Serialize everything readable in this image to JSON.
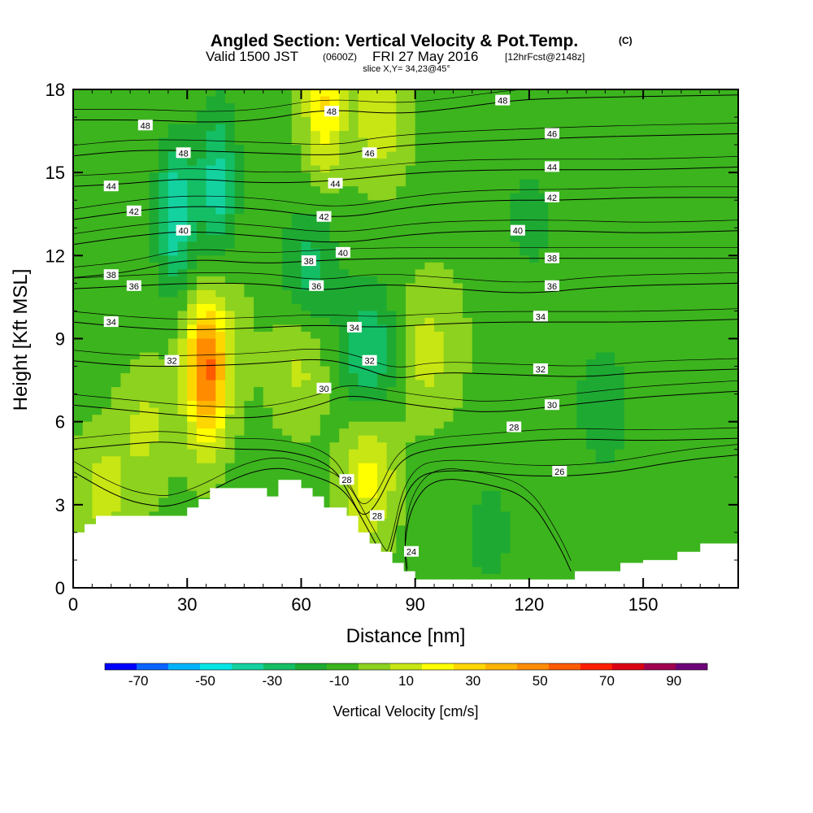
{
  "title": {
    "main": "Angled Section: Vertical Velocity & Pot.Temp.",
    "units": "(C)",
    "valid_prefix": "Valid 1500 JST",
    "valid_z": "(0600Z)",
    "valid_date": "FRI 27 May 2016",
    "valid_fcst": "[12hrFcst@2148z]",
    "slice": "slice X,Y= 34,23@45°"
  },
  "colors": {
    "levels": [
      "#0000ff",
      "#0a64ff",
      "#00b4ff",
      "#00e6e6",
      "#14d2a0",
      "#14be64",
      "#1eaa32",
      "#3cb41e",
      "#8cd21e",
      "#c8e614",
      "#ffff00",
      "#ffd700",
      "#ffb400",
      "#ff8c00",
      "#ff5a00",
      "#ff1e00",
      "#dc0014",
      "#a00050",
      "#6e0078"
    ],
    "terrain": "#ffffff"
  },
  "chart_data": {
    "type": "heatmap",
    "xlabel": "Distance [nm]",
    "ylabel": "Height [Kft MSL]",
    "xlim": [
      0,
      175
    ],
    "ylim": [
      0,
      18
    ],
    "xticks": [
      "0",
      "30",
      "60",
      "90",
      "120",
      "150"
    ],
    "yticks": [
      "0",
      "3",
      "6",
      "9",
      "12",
      "15",
      "18"
    ],
    "colorbar": {
      "label": "Vertical Velocity [cm/s]",
      "ticks": [
        "-70",
        "-50",
        "-30",
        "-10",
        "10",
        "30",
        "50",
        "70",
        "90"
      ],
      "bounds": [
        -80,
        100
      ]
    },
    "features": [
      {
        "x": 35,
        "y": 7.5,
        "w": 45
      },
      {
        "x": 36,
        "y": 8.5,
        "w": 20
      },
      {
        "x": 19,
        "y": 6,
        "w": 15
      },
      {
        "x": 78,
        "y": 4,
        "w": 25
      },
      {
        "x": 93,
        "y": 8.5,
        "w": 15
      },
      {
        "x": 60,
        "y": 8,
        "w": 15
      },
      {
        "x": 8,
        "y": 3.5,
        "w": 15
      },
      {
        "x": 66,
        "y": 17.5,
        "w": 30
      },
      {
        "x": 81,
        "y": 17,
        "w": 20
      },
      {
        "x": 27,
        "y": 13.5,
        "w": -35
      },
      {
        "x": 38,
        "y": 14.5,
        "w": -30
      },
      {
        "x": 78,
        "y": 8.5,
        "w": -25
      },
      {
        "x": 62,
        "y": 11.5,
        "w": -20
      },
      {
        "x": 140,
        "y": 6.5,
        "w": -15
      },
      {
        "x": 120,
        "y": 13.5,
        "w": -10
      },
      {
        "x": 110,
        "y": 2,
        "w": -10
      }
    ],
    "terrain_profile": {
      "x": [
        0,
        3,
        6,
        9,
        12,
        15,
        18,
        21,
        24,
        27,
        30,
        33,
        36,
        39,
        42,
        45,
        48,
        51,
        54,
        57,
        60,
        63,
        66,
        69,
        72,
        75,
        78,
        81,
        84,
        87,
        90,
        93,
        96,
        99,
        102,
        105,
        108,
        111,
        114,
        117,
        120,
        123,
        126,
        129,
        132,
        135,
        138,
        141,
        144,
        147,
        150,
        153,
        156,
        159,
        162,
        165,
        168,
        171,
        175
      ],
      "height": [
        2.0,
        2.3,
        2.6,
        2.6,
        2.6,
        2.6,
        2.6,
        2.6,
        2.6,
        2.6,
        2.9,
        3.2,
        3.6,
        3.6,
        3.6,
        3.6,
        3.6,
        3.3,
        3.9,
        3.9,
        3.6,
        3.3,
        2.9,
        2.9,
        2.6,
        2.0,
        1.6,
        1.3,
        0.9,
        0.6,
        0.3,
        0.3,
        0.3,
        0.3,
        0.3,
        0.3,
        0.3,
        0.3,
        0.3,
        0.3,
        0.3,
        0.3,
        0.3,
        0.3,
        0.6,
        0.6,
        0.6,
        0.6,
        0.9,
        0.9,
        1.0,
        1.0,
        1.0,
        1.3,
        1.3,
        1.6,
        1.6,
        1.6,
        1.6
      ]
    },
    "theta_contours": [
      {
        "level": 24,
        "label": "24",
        "points": [
          [
            88,
            0.3
          ],
          [
            87,
            1.5
          ],
          [
            89,
            3
          ],
          [
            95,
            4
          ],
          [
            108,
            3.8
          ],
          [
            120,
            3.3
          ],
          [
            128,
            1.5
          ],
          [
            131,
            0.6
          ]
        ]
      },
      {
        "level": 26,
        "label": "26",
        "points": [
          [
            0,
            4.2
          ],
          [
            10,
            3.4
          ],
          [
            18,
            3.0
          ],
          [
            28,
            2.9
          ],
          [
            50,
            4.5
          ],
          [
            65,
            4.0
          ],
          [
            72,
            3.5
          ],
          [
            78,
            2.0
          ],
          [
            82,
            1.0
          ],
          [
            83,
            0.9
          ],
          [
            88,
            4.0
          ],
          [
            100,
            4.3
          ],
          [
            120,
            4.0
          ],
          [
            140,
            4.1
          ],
          [
            160,
            4.6
          ],
          [
            175,
            4.8
          ]
        ]
      },
      {
        "level": 28,
        "label": "28",
        "points": [
          [
            0,
            5.0
          ],
          [
            15,
            5.2
          ],
          [
            25,
            5.3
          ],
          [
            40,
            5.0
          ],
          [
            55,
            5.0
          ],
          [
            68,
            4.5
          ],
          [
            73,
            3.3
          ],
          [
            76,
            2.5
          ],
          [
            80,
            3.0
          ],
          [
            85,
            4.5
          ],
          [
            92,
            5.0
          ],
          [
            110,
            5.2
          ],
          [
            130,
            5.4
          ],
          [
            150,
            5.3
          ],
          [
            175,
            5.4
          ]
        ]
      },
      {
        "level": 30,
        "label": "30",
        "points": [
          [
            0,
            6.6
          ],
          [
            15,
            6.4
          ],
          [
            30,
            6.2
          ],
          [
            50,
            6.1
          ],
          [
            65,
            6.6
          ],
          [
            72,
            7.0
          ],
          [
            85,
            6.7
          ],
          [
            95,
            6.5
          ],
          [
            110,
            6.3
          ],
          [
            130,
            6.6
          ],
          [
            150,
            6.9
          ],
          [
            175,
            7.1
          ]
        ]
      },
      {
        "level": 32,
        "label": "32",
        "points": [
          [
            0,
            8.2
          ],
          [
            15,
            8.0
          ],
          [
            30,
            8.0
          ],
          [
            50,
            8.1
          ],
          [
            65,
            8.3
          ],
          [
            75,
            8.0
          ],
          [
            85,
            7.5
          ],
          [
            95,
            7.8
          ],
          [
            115,
            7.7
          ],
          [
            135,
            7.6
          ],
          [
            150,
            7.8
          ],
          [
            175,
            7.9
          ]
        ]
      },
      {
        "level": 34,
        "label": "34",
        "points": [
          [
            0,
            9.6
          ],
          [
            15,
            9.4
          ],
          [
            30,
            9.3
          ],
          [
            50,
            9.4
          ],
          [
            65,
            9.5
          ],
          [
            80,
            9.4
          ],
          [
            92,
            9.5
          ],
          [
            110,
            9.6
          ],
          [
            130,
            9.6
          ],
          [
            150,
            9.6
          ],
          [
            175,
            9.7
          ]
        ]
      },
      {
        "level": 36,
        "label": "36",
        "points": [
          [
            0,
            10.8
          ],
          [
            15,
            10.9
          ],
          [
            30,
            11.0
          ],
          [
            50,
            11.0
          ],
          [
            65,
            10.7
          ],
          [
            80,
            11.0
          ],
          [
            100,
            10.8
          ],
          [
            120,
            10.6
          ],
          [
            140,
            10.9
          ],
          [
            175,
            11.0
          ]
        ]
      },
      {
        "level": 38,
        "label": "38",
        "points": [
          [
            0,
            11.2
          ],
          [
            15,
            11.4
          ],
          [
            30,
            11.9
          ],
          [
            50,
            11.7
          ],
          [
            62,
            11.8
          ],
          [
            80,
            11.9
          ],
          [
            100,
            11.9
          ],
          [
            125,
            11.9
          ],
          [
            150,
            11.9
          ],
          [
            175,
            11.9
          ]
        ]
      },
      {
        "level": 40,
        "label": "40",
        "points": [
          [
            0,
            12.4
          ],
          [
            15,
            12.7
          ],
          [
            30,
            12.9
          ],
          [
            50,
            12.7
          ],
          [
            70,
            12.4
          ],
          [
            90,
            12.8
          ],
          [
            110,
            12.9
          ],
          [
            130,
            12.9
          ],
          [
            150,
            12.8
          ],
          [
            175,
            12.9
          ]
        ]
      },
      {
        "level": 42,
        "label": "42",
        "points": [
          [
            0,
            13.3
          ],
          [
            15,
            13.6
          ],
          [
            30,
            13.8
          ],
          [
            50,
            13.7
          ],
          [
            70,
            13.3
          ],
          [
            90,
            13.8
          ],
          [
            110,
            14.0
          ],
          [
            130,
            14.0
          ],
          [
            150,
            14.1
          ],
          [
            175,
            14.1
          ]
        ]
      },
      {
        "level": 44,
        "label": "44",
        "points": [
          [
            0,
            14.5
          ],
          [
            15,
            14.6
          ],
          [
            30,
            14.8
          ],
          [
            50,
            14.6
          ],
          [
            70,
            14.7
          ],
          [
            90,
            15.0
          ],
          [
            110,
            15.1
          ],
          [
            130,
            15.1
          ],
          [
            150,
            15.1
          ],
          [
            175,
            15.2
          ]
        ]
      },
      {
        "level": 46,
        "label": "46",
        "points": [
          [
            0,
            15.6
          ],
          [
            15,
            15.8
          ],
          [
            30,
            15.8
          ],
          [
            50,
            15.7
          ],
          [
            70,
            15.6
          ],
          [
            80,
            15.9
          ],
          [
            100,
            16.1
          ],
          [
            120,
            16.2
          ],
          [
            140,
            16.3
          ],
          [
            175,
            16.4
          ]
        ]
      },
      {
        "level": 48,
        "label": "48",
        "points": [
          [
            0,
            16.9
          ],
          [
            20,
            16.9
          ],
          [
            35,
            16.8
          ],
          [
            50,
            16.9
          ],
          [
            66,
            17.3
          ],
          [
            85,
            17.1
          ],
          [
            100,
            17.3
          ],
          [
            115,
            17.6
          ],
          [
            130,
            17.7
          ],
          [
            175,
            17.8
          ]
        ]
      }
    ],
    "contour_labels": [
      {
        "text": "48",
        "x": 19,
        "y": 16.7
      },
      {
        "text": "48",
        "x": 29,
        "y": 15.7
      },
      {
        "text": "48",
        "x": 68,
        "y": 17.2
      },
      {
        "text": "48",
        "x": 113,
        "y": 17.6
      },
      {
        "text": "46",
        "x": 78,
        "y": 15.7
      },
      {
        "text": "46",
        "x": 126,
        "y": 16.4
      },
      {
        "text": "44",
        "x": 10,
        "y": 14.5
      },
      {
        "text": "44",
        "x": 69,
        "y": 14.6
      },
      {
        "text": "44",
        "x": 126,
        "y": 15.2
      },
      {
        "text": "42",
        "x": 16,
        "y": 13.6
      },
      {
        "text": "42",
        "x": 66,
        "y": 13.4
      },
      {
        "text": "42",
        "x": 126,
        "y": 14.1
      },
      {
        "text": "40",
        "x": 29,
        "y": 12.9
      },
      {
        "text": "40",
        "x": 71,
        "y": 12.1
      },
      {
        "text": "40",
        "x": 117,
        "y": 12.9
      },
      {
        "text": "38",
        "x": 10,
        "y": 11.3
      },
      {
        "text": "38",
        "x": 62,
        "y": 11.8
      },
      {
        "text": "38",
        "x": 126,
        "y": 11.9
      },
      {
        "text": "36",
        "x": 16,
        "y": 10.9
      },
      {
        "text": "36",
        "x": 64,
        "y": 10.9
      },
      {
        "text": "36",
        "x": 126,
        "y": 10.9
      },
      {
        "text": "34",
        "x": 10,
        "y": 9.6
      },
      {
        "text": "34",
        "x": 74,
        "y": 9.4
      },
      {
        "text": "34",
        "x": 123,
        "y": 9.8
      },
      {
        "text": "32",
        "x": 26,
        "y": 8.2
      },
      {
        "text": "32",
        "x": 78,
        "y": 8.2
      },
      {
        "text": "32",
        "x": 123,
        "y": 7.9
      },
      {
        "text": "30",
        "x": 66,
        "y": 7.2
      },
      {
        "text": "30",
        "x": 126,
        "y": 6.6
      },
      {
        "text": "28",
        "x": 116,
        "y": 5.8
      },
      {
        "text": "28",
        "x": 72,
        "y": 3.9
      },
      {
        "text": "28",
        "x": 80,
        "y": 2.6
      },
      {
        "text": "26",
        "x": 128,
        "y": 4.2
      },
      {
        "text": "24",
        "x": 89,
        "y": 1.3
      }
    ]
  }
}
